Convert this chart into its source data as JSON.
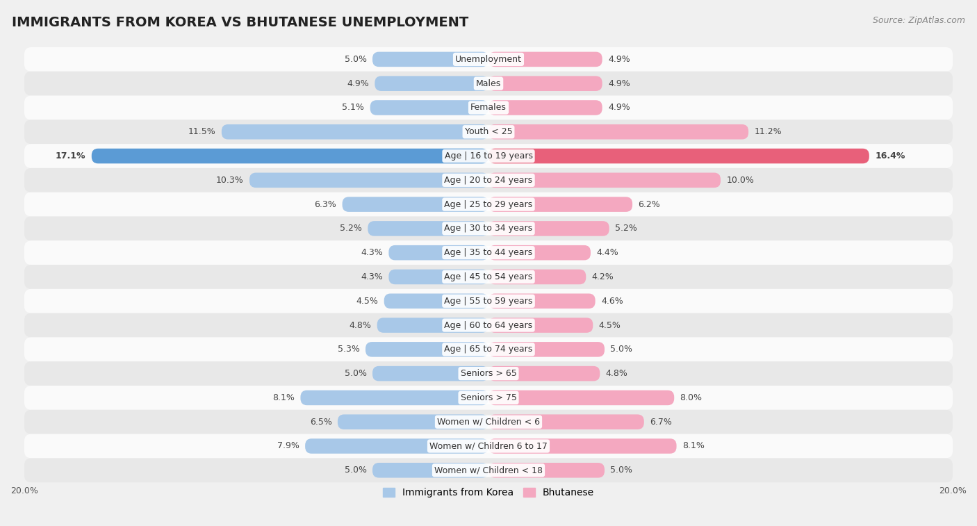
{
  "title": "IMMIGRANTS FROM KOREA VS BHUTANESE UNEMPLOYMENT",
  "source": "Source: ZipAtlas.com",
  "categories": [
    "Unemployment",
    "Males",
    "Females",
    "Youth < 25",
    "Age | 16 to 19 years",
    "Age | 20 to 24 years",
    "Age | 25 to 29 years",
    "Age | 30 to 34 years",
    "Age | 35 to 44 years",
    "Age | 45 to 54 years",
    "Age | 55 to 59 years",
    "Age | 60 to 64 years",
    "Age | 65 to 74 years",
    "Seniors > 65",
    "Seniors > 75",
    "Women w/ Children < 6",
    "Women w/ Children 6 to 17",
    "Women w/ Children < 18"
  ],
  "korea_values": [
    5.0,
    4.9,
    5.1,
    11.5,
    17.1,
    10.3,
    6.3,
    5.2,
    4.3,
    4.3,
    4.5,
    4.8,
    5.3,
    5.0,
    8.1,
    6.5,
    7.9,
    5.0
  ],
  "bhutan_values": [
    4.9,
    4.9,
    4.9,
    11.2,
    16.4,
    10.0,
    6.2,
    5.2,
    4.4,
    4.2,
    4.6,
    4.5,
    5.0,
    4.8,
    8.0,
    6.7,
    8.1,
    5.0
  ],
  "korea_color": "#a8c8e8",
  "bhutan_color": "#f4a8c0",
  "korea_highlight_color": "#5b9bd5",
  "bhutan_highlight_color": "#e8607a",
  "highlight_row": 4,
  "background_color": "#f0f0f0",
  "row_color_light": "#fafafa",
  "row_color_dark": "#e8e8e8",
  "xlim": 20.0,
  "bar_height": 0.62,
  "title_fontsize": 14,
  "label_fontsize": 9,
  "value_fontsize": 9,
  "legend_fontsize": 10,
  "source_fontsize": 9
}
